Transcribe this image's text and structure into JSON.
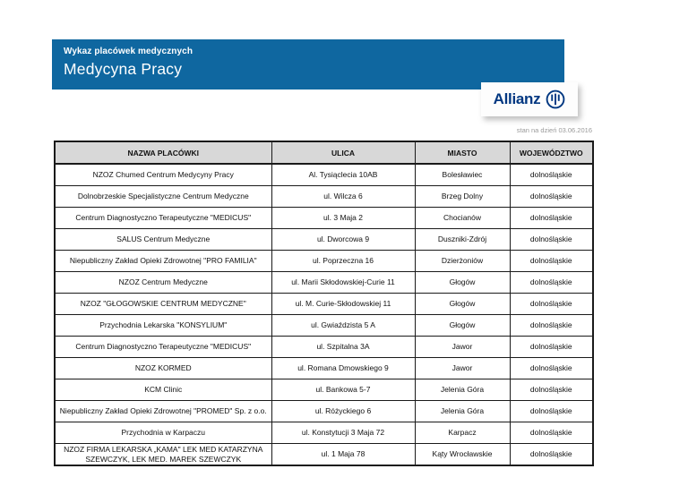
{
  "banner": {
    "eyebrow": "Wykaz placówek medycznych",
    "title": "Medycyna Pracy"
  },
  "logo": {
    "brand": "Allianz"
  },
  "status": {
    "as_of": "stan na dzień 03.06.2016"
  },
  "colors": {
    "banner_blue": "#0f67a0",
    "logo_navy": "#003781",
    "header_gray": "#d8d8d8",
    "border_black": "#1a1a1a",
    "date_gray": "#9a9a9a"
  },
  "table": {
    "columns": [
      "NAZWA PLACÓWKI",
      "ULICA",
      "MIASTO",
      "WOJEWÓDZTWO"
    ],
    "rows": [
      [
        "NZOZ Chumed Centrum Medycyny Pracy",
        "Al. Tysiąclecia 10AB",
        "Bolesławiec",
        "dolnośląskie"
      ],
      [
        "Dolnobrzeskie Specjalistyczne Centrum Medyczne",
        "ul. Wilcza 6",
        "Brzeg Dolny",
        "dolnośląskie"
      ],
      [
        "Centrum Diagnostyczno Terapeutyczne \"MEDICUS\"",
        "ul. 3 Maja 2",
        "Chocianów",
        "dolnośląskie"
      ],
      [
        "SALUS Centrum Medyczne",
        "ul. Dworcowa 9",
        "Duszniki-Zdrój",
        "dolnośląskie"
      ],
      [
        "Niepubliczny Zakład Opieki Zdrowotnej \"PRO FAMILIA\"",
        "ul. Poprzeczna 16",
        "Dzierżoniów",
        "dolnośląskie"
      ],
      [
        "NZOZ Centrum Medyczne",
        "ul. Marii Skłodowskiej-Curie 11",
        "Głogów",
        "dolnośląskie"
      ],
      [
        "NZOZ \"GŁOGOWSKIE CENTRUM MEDYCZNE\"",
        "ul. M. Curie-Skłodowskiej 11",
        "Głogów",
        "dolnośląskie"
      ],
      [
        "Przychodnia Lekarska \"KONSYLIUM\"",
        "ul. Gwiaździsta 5 A",
        "Głogów",
        "dolnośląskie"
      ],
      [
        "Centrum Diagnostyczno Terapeutyczne \"MEDICUS\"",
        "ul. Szpitalna 3A",
        "Jawor",
        "dolnośląskie"
      ],
      [
        "NZOZ KORMED",
        "ul. Romana Dmowskiego 9",
        "Jawor",
        "dolnośląskie"
      ],
      [
        "KCM Clinic",
        "ul. Bankowa 5-7",
        "Jelenia Góra",
        "dolnośląskie"
      ],
      [
        "Niepubliczny Zakład Opieki Zdrowotnej \"PROMED\" Sp. z o.o.",
        "ul. Różyckiego 6",
        "Jelenia Góra",
        "dolnośląskie"
      ],
      [
        "Przychodnia w Karpaczu",
        "ul. Konstytucji 3 Maja 72",
        "Karpacz",
        "dolnośląskie"
      ],
      [
        "NZOZ FIRMA LEKARSKA „KAMA\" LEK MED KATARZYNA SZEWCZYK, LEK MED. MAREK SZEWCZYK",
        "ul. 1 Maja 78",
        "Kąty Wrocławskie",
        "dolnośląskie"
      ]
    ]
  }
}
